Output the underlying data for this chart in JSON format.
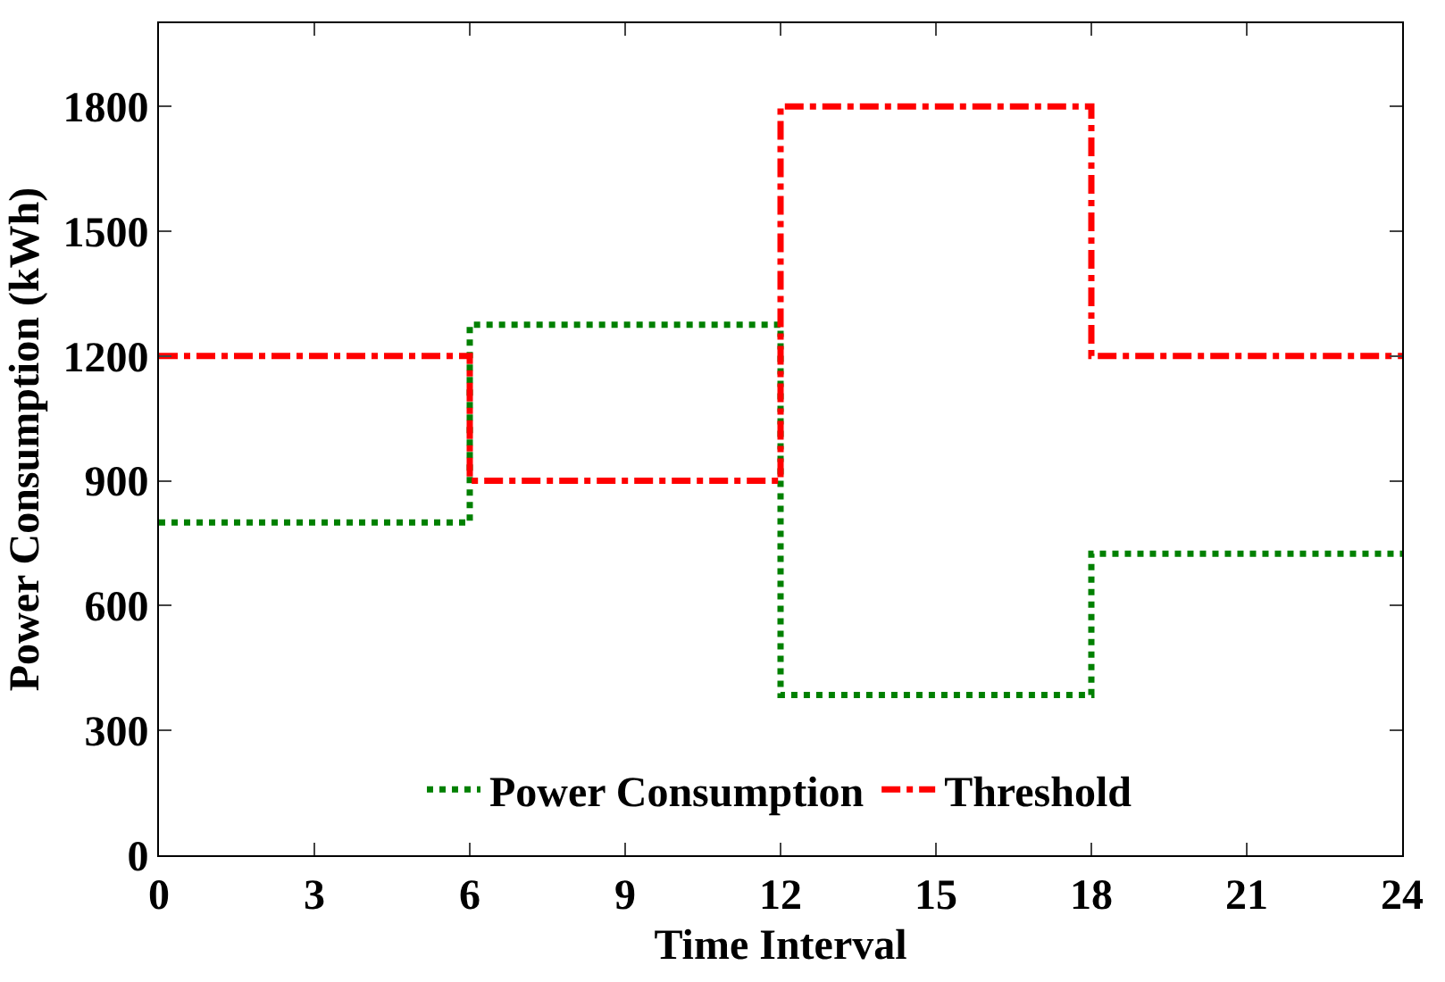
{
  "chart_data": {
    "type": "step",
    "xlabel": "Time Interval",
    "ylabel": "Power Consumption (kWh)",
    "x": [
      0,
      6,
      12,
      18,
      24
    ],
    "series": [
      {
        "name": "Power Consumption",
        "color": "#008000",
        "values": [
          800,
          1275,
          385,
          725,
          725
        ],
        "line_style": "dotted"
      },
      {
        "name": "Threshold",
        "color": "#ff0000",
        "values": [
          1200,
          900,
          1800,
          1200,
          1200
        ],
        "line_style": "dashdot"
      }
    ],
    "xlim": [
      0,
      24
    ],
    "xticks": [
      0,
      3,
      6,
      9,
      12,
      15,
      18,
      21,
      24
    ],
    "ylim": [
      0,
      2000
    ],
    "yticks": [
      0,
      300,
      600,
      900,
      1200,
      1500,
      1800
    ],
    "grid": false,
    "legend": "bottom",
    "marker": "none"
  }
}
